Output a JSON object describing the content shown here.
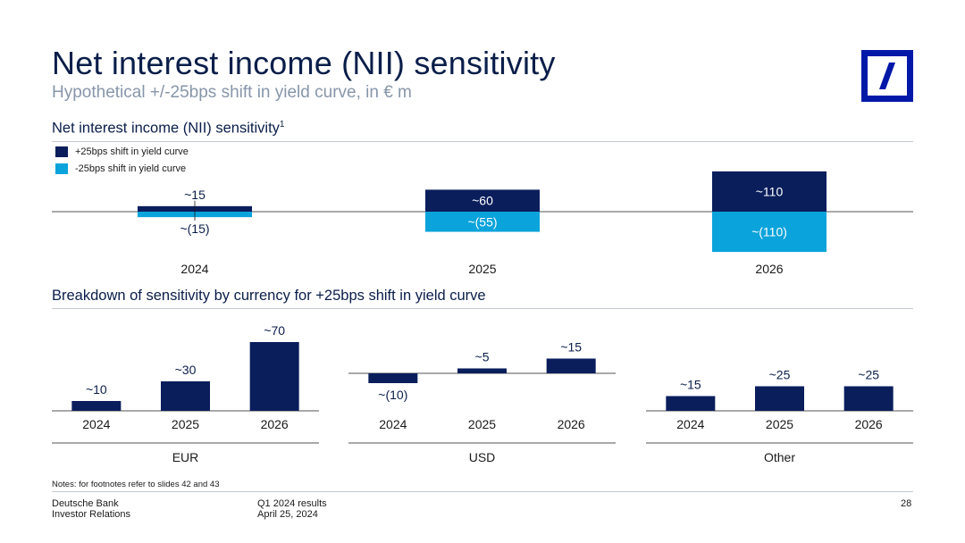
{
  "header": {
    "title": "Net interest income (NII) sensitivity",
    "subtitle": "Hypothetical +/-25bps shift in yield curve, in € m"
  },
  "colors": {
    "navy": "#0a1e5c",
    "cyan": "#0aa3db",
    "logo_blue": "#0018a8"
  },
  "top_section": {
    "title": "Net interest income (NII) sensitivity",
    "footnote_marker": "1"
  },
  "bottom_section": {
    "title": "Breakdown of sensitivity by currency for +25bps shift in yield curve"
  },
  "chart_data": [
    {
      "type": "bar",
      "title": "Net interest income (NII) sensitivity",
      "categories": [
        "2024",
        "2025",
        "2026"
      ],
      "series": [
        {
          "name": "+25bps shift in yield curve",
          "values": [
            15,
            60,
            110
          ],
          "labels": [
            "~15",
            "~60",
            "~110"
          ],
          "color": "#0a1e5c"
        },
        {
          "name": "-25bps shift in yield curve",
          "values": [
            -15,
            -55,
            -110
          ],
          "labels": [
            "~(15)",
            "~(55)",
            "~(110)"
          ],
          "color": "#0aa3db"
        }
      ],
      "xlabel": "",
      "ylabel": ""
    },
    {
      "type": "bar",
      "title": "EUR",
      "categories": [
        "2024",
        "2025",
        "2026"
      ],
      "values": [
        10,
        30,
        70
      ],
      "labels": [
        "~10",
        "~30",
        "~70"
      ]
    },
    {
      "type": "bar",
      "title": "USD",
      "categories": [
        "2024",
        "2025",
        "2026"
      ],
      "values": [
        -10,
        5,
        15
      ],
      "labels": [
        "~(10)",
        "~5",
        "~15"
      ]
    },
    {
      "type": "bar",
      "title": "Other",
      "categories": [
        "2024",
        "2025",
        "2026"
      ],
      "values": [
        15,
        25,
        25
      ],
      "labels": [
        "~15",
        "~25",
        "~25"
      ]
    }
  ],
  "notes": "Notes: for footnotes refer to slides 42 and 43",
  "footer": {
    "company": "Deutsche Bank",
    "department": "Investor Relations",
    "report": "Q1 2024 results",
    "date": "April 25, 2024",
    "page": "28"
  }
}
